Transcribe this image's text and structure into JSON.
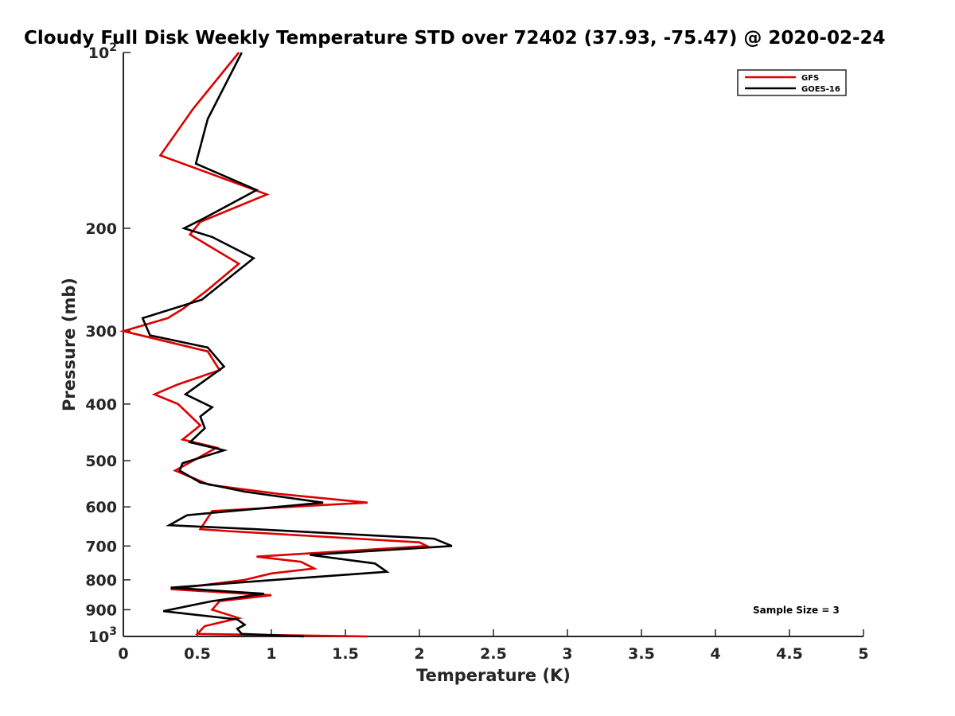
{
  "chart_data": {
    "type": "line",
    "title": "Cloudy Full Disk Weekly Temperature STD over 72402 (37.93, -75.47) @ 2020-02-24",
    "xlabel": "Temperature (K)",
    "ylabel": "Pressure (mb)",
    "xlim": [
      0,
      5
    ],
    "ylim": [
      100,
      1000
    ],
    "y_scale": "log",
    "y_reversed": true,
    "grid": false,
    "legend_position": "top-right",
    "x_ticks": [
      {
        "value": 0,
        "label": "0"
      },
      {
        "value": 0.5,
        "label": "0.5"
      },
      {
        "value": 1,
        "label": "1"
      },
      {
        "value": 1.5,
        "label": "1.5"
      },
      {
        "value": 2,
        "label": "2"
      },
      {
        "value": 2.5,
        "label": "2.5"
      },
      {
        "value": 3,
        "label": "3"
      },
      {
        "value": 3.5,
        "label": "3.5"
      },
      {
        "value": 4,
        "label": "4"
      },
      {
        "value": 4.5,
        "label": "4.5"
      },
      {
        "value": 5,
        "label": "5"
      }
    ],
    "y_ticks": [
      {
        "value": 100,
        "base": "10",
        "exp": "2"
      },
      {
        "value": 200,
        "label": "200"
      },
      {
        "value": 300,
        "label": "300"
      },
      {
        "value": 400,
        "label": "400"
      },
      {
        "value": 500,
        "label": "500"
      },
      {
        "value": 600,
        "label": "600"
      },
      {
        "value": 700,
        "label": "700"
      },
      {
        "value": 800,
        "label": "800"
      },
      {
        "value": 900,
        "label": "900"
      },
      {
        "value": 1000,
        "base": "10",
        "exp": "3"
      }
    ],
    "series": [
      {
        "name": "GFS",
        "color": "#dd0000",
        "points": [
          [
            0.78,
            100
          ],
          [
            0.47,
            125
          ],
          [
            0.25,
            150
          ],
          [
            0.97,
            175
          ],
          [
            0.52,
            195
          ],
          [
            0.45,
            205
          ],
          [
            0.78,
            230
          ],
          [
            0.57,
            255
          ],
          [
            0.4,
            275
          ],
          [
            0.3,
            285
          ],
          [
            0.0,
            300
          ],
          [
            0.57,
            325
          ],
          [
            0.65,
            350
          ],
          [
            0.37,
            370
          ],
          [
            0.21,
            385
          ],
          [
            0.37,
            400
          ],
          [
            0.52,
            435
          ],
          [
            0.4,
            460
          ],
          [
            0.63,
            475
          ],
          [
            0.35,
            520
          ],
          [
            0.58,
            550
          ],
          [
            1.05,
            570
          ],
          [
            1.65,
            590
          ],
          [
            0.6,
            610
          ],
          [
            0.52,
            655
          ],
          [
            0.7,
            660
          ],
          [
            2.0,
            690
          ],
          [
            2.05,
            700
          ],
          [
            0.9,
            730
          ],
          [
            1.2,
            745
          ],
          [
            1.29,
            765
          ],
          [
            1.0,
            780
          ],
          [
            0.82,
            800
          ],
          [
            0.32,
            830
          ],
          [
            1.0,
            850
          ],
          [
            0.65,
            870
          ],
          [
            0.6,
            900
          ],
          [
            0.78,
            930
          ],
          [
            0.55,
            960
          ],
          [
            0.5,
            990
          ],
          [
            1.65,
            1000
          ]
        ]
      },
      {
        "name": "GOES-16",
        "color": "#000000",
        "points": [
          [
            0.8,
            100
          ],
          [
            0.57,
            130
          ],
          [
            0.49,
            155
          ],
          [
            0.9,
            172
          ],
          [
            0.55,
            192
          ],
          [
            0.41,
            200
          ],
          [
            0.6,
            207
          ],
          [
            0.88,
            225
          ],
          [
            0.53,
            265
          ],
          [
            0.13,
            285
          ],
          [
            0.18,
            305
          ],
          [
            0.57,
            320
          ],
          [
            0.68,
            345
          ],
          [
            0.42,
            385
          ],
          [
            0.6,
            405
          ],
          [
            0.52,
            420
          ],
          [
            0.55,
            440
          ],
          [
            0.45,
            465
          ],
          [
            0.68,
            480
          ],
          [
            0.4,
            505
          ],
          [
            0.38,
            520
          ],
          [
            0.52,
            545
          ],
          [
            0.82,
            565
          ],
          [
            1.35,
            590
          ],
          [
            0.43,
            620
          ],
          [
            0.31,
            645
          ],
          [
            0.88,
            655
          ],
          [
            2.1,
            680
          ],
          [
            2.22,
            700
          ],
          [
            1.26,
            725
          ],
          [
            1.7,
            750
          ],
          [
            1.78,
            775
          ],
          [
            1.02,
            800
          ],
          [
            0.32,
            825
          ],
          [
            0.95,
            845
          ],
          [
            0.6,
            870
          ],
          [
            0.27,
            905
          ],
          [
            0.77,
            935
          ],
          [
            0.82,
            955
          ],
          [
            0.77,
            970
          ],
          [
            0.8,
            990
          ],
          [
            1.22,
            1000
          ]
        ]
      }
    ],
    "annotation": "Sample Size = 3"
  }
}
